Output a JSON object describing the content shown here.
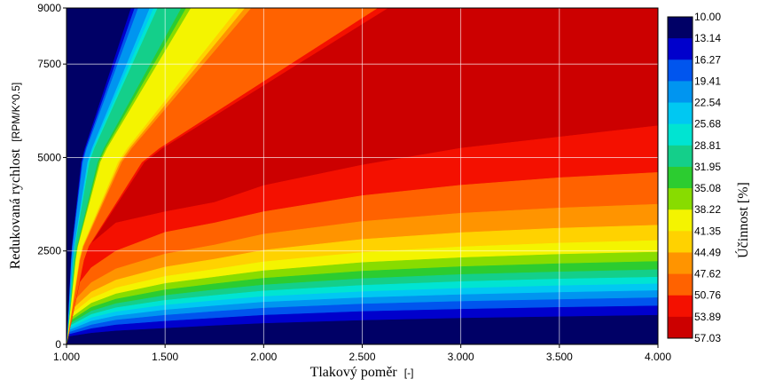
{
  "chart_data": {
    "type": "heatmap",
    "subtype": "filled-contour",
    "title": "",
    "xlabel": "Tlakový poměr",
    "xunit": "[-]",
    "ylabel": "Redukovaná rychlost",
    "yunit": "[RPM/K^0.5]",
    "xlim": [
      1.0,
      4.0
    ],
    "ylim": [
      0,
      9000
    ],
    "xticks": [
      "1.000",
      "1.500",
      "2.000",
      "2.500",
      "3.000",
      "3.500",
      "4.000"
    ],
    "xtick_values": [
      1.0,
      1.5,
      2.0,
      2.5,
      3.0,
      3.5,
      4.0
    ],
    "yticks": [
      "0",
      "2500",
      "5000",
      "7500",
      "9000"
    ],
    "ytick_values": [
      0,
      2500,
      5000,
      7500,
      9000
    ],
    "grid": true,
    "colorbar": {
      "label": "Účinnost [%]",
      "placement": "right",
      "levels": [
        "10.00",
        "13.14",
        "16.27",
        "19.41",
        "22.54",
        "25.68",
        "28.81",
        "31.95",
        "35.08",
        "38.22",
        "41.35",
        "44.49",
        "47.62",
        "50.76",
        "53.89",
        "57.03"
      ],
      "level_values": [
        10.0,
        13.14,
        16.27,
        19.41,
        22.54,
        25.68,
        28.81,
        31.95,
        35.08,
        38.22,
        41.35,
        44.49,
        47.62,
        50.76,
        53.89,
        57.03
      ],
      "colors": [
        "#000066",
        "#0000cc",
        "#0055ee",
        "#0095f0",
        "#00c8f2",
        "#00e4d2",
        "#14cf8a",
        "#2ccc30",
        "#88dc00",
        "#f4f400",
        "#ffd200",
        "#ff9400",
        "#ff6200",
        "#f41000",
        "#cc0000"
      ]
    },
    "contours": {
      "x": [
        1.0,
        1.125,
        1.25,
        1.5,
        1.75,
        2.0,
        2.5,
        3.0,
        3.5,
        4.0
      ],
      "efficiency_boundaries_lower": [
        {
          "level": 13.14,
          "y": [
            200,
            300,
            360,
            430,
            500,
            560,
            640,
            700,
            740,
            780
          ]
        },
        {
          "level": 16.27,
          "y": [
            250,
            420,
            520,
            620,
            700,
            780,
            880,
            940,
            990,
            1030
          ]
        },
        {
          "level": 19.41,
          "y": [
            300,
            520,
            650,
            780,
            880,
            970,
            1080,
            1150,
            1200,
            1250
          ]
        },
        {
          "level": 22.54,
          "y": [
            350,
            620,
            760,
            920,
            1030,
            1130,
            1250,
            1330,
            1390,
            1440
          ]
        },
        {
          "level": 25.68,
          "y": [
            400,
            710,
            870,
            1050,
            1170,
            1280,
            1410,
            1500,
            1570,
            1620
          ]
        },
        {
          "level": 28.81,
          "y": [
            450,
            800,
            980,
            1180,
            1310,
            1430,
            1580,
            1680,
            1750,
            1800
          ]
        },
        {
          "level": 31.95,
          "y": [
            500,
            890,
            1090,
            1310,
            1460,
            1590,
            1760,
            1870,
            1940,
            2000
          ]
        },
        {
          "level": 35.08,
          "y": [
            560,
            990,
            1210,
            1460,
            1620,
            1770,
            1960,
            2080,
            2160,
            2220
          ]
        },
        {
          "level": 38.22,
          "y": [
            620,
            1100,
            1350,
            1630,
            1800,
            1970,
            2190,
            2320,
            2410,
            2470
          ]
        },
        {
          "level": 41.35,
          "y": [
            700,
            1230,
            1510,
            1820,
            2010,
            2210,
            2460,
            2610,
            2710,
            2780
          ]
        },
        {
          "level": 44.49,
          "y": [
            800,
            1400,
            1720,
            2070,
            2280,
            2520,
            2810,
            2990,
            3110,
            3190
          ]
        },
        {
          "level": 47.62,
          "y": [
            950,
            1650,
            2020,
            2420,
            2660,
            2950,
            3290,
            3510,
            3650,
            3750
          ]
        },
        {
          "level": 50.76,
          "y": [
            1200,
            2050,
            2500,
            3000,
            3250,
            3550,
            3980,
            4260,
            4460,
            4600
          ]
        },
        {
          "level": 53.89,
          "y": [
            1700,
            2700,
            3250,
            3550,
            3800,
            4250,
            4800,
            5250,
            5550,
            5850
          ]
        }
      ],
      "efficiency_boundaries_upper": [
        {
          "level": 13.14,
          "x_at_9000": 1.56,
          "x_at_5000": 1.13,
          "x_at_2500": 1.04
        },
        {
          "level": 22.54,
          "x_at_9000": 1.62,
          "x_at_5000": 1.16,
          "x_at_2500": 1.05
        },
        {
          "level": 35.08,
          "x_at_9000": 1.75,
          "x_at_5000": 1.21,
          "x_at_2500": 1.06
        },
        {
          "level": 47.62,
          "x_at_9000": 2.0,
          "x_at_5000": 1.31,
          "x_at_2500": 1.08
        },
        {
          "level": 53.89,
          "x_at_9000": 2.63,
          "x_at_5000": 1.41,
          "x_at_2500": 1.1
        }
      ]
    }
  }
}
